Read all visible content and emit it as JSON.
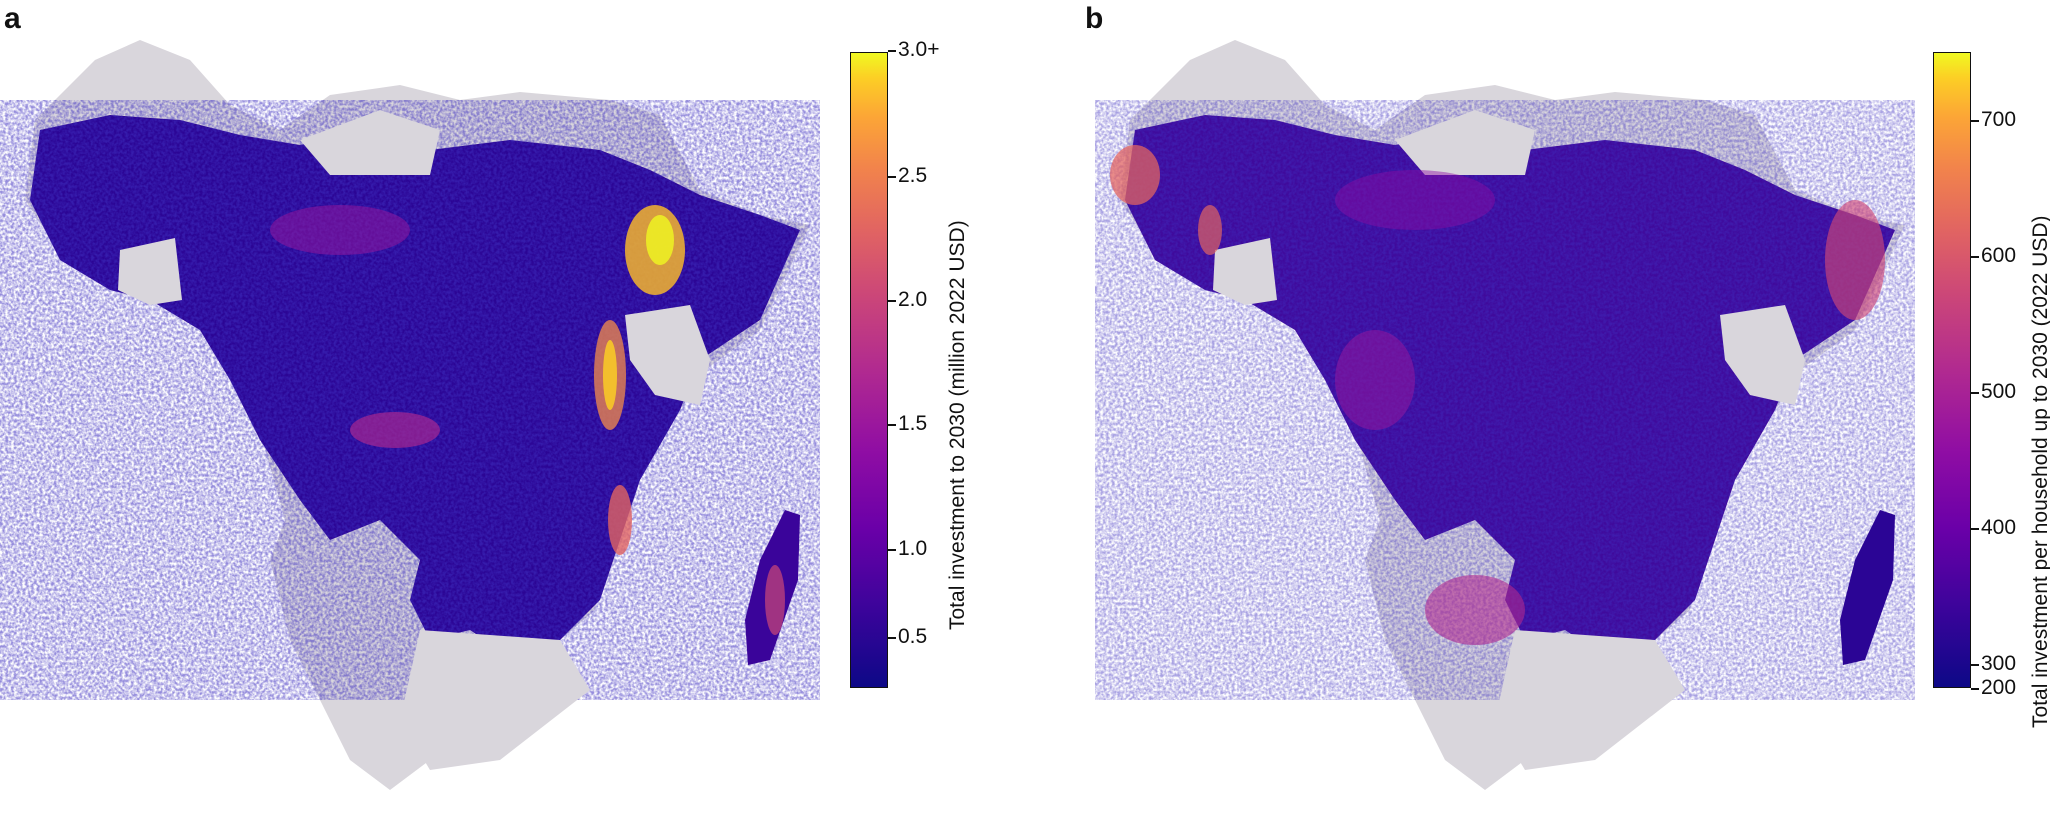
{
  "panels": [
    {
      "label": "a",
      "colorbar": {
        "title": "Total investment to 2030 (million 2022 USD)",
        "ticks": [
          "3.0+",
          "2.5",
          "2.0",
          "1.5",
          "1.0",
          "0.5"
        ],
        "tick_values": [
          3.0,
          2.5,
          2.0,
          1.5,
          1.0,
          0.5
        ],
        "range": [
          0,
          3.0
        ],
        "colormap": "plasma"
      }
    },
    {
      "label": "b",
      "colorbar": {
        "title": "Total investment per household up to 2030 (2022 USD)",
        "ticks": [
          "700",
          "600",
          "500",
          "400",
          "300",
          "200"
        ],
        "tick_values": [
          700,
          600,
          500,
          400,
          300,
          200
        ],
        "range": [
          200,
          750
        ],
        "colormap": "plasma"
      }
    }
  ],
  "colors": {
    "no_data": "#d9d6dc",
    "low": "#0d0887",
    "mid": "#8f0da4",
    "high": "#f0f921"
  }
}
